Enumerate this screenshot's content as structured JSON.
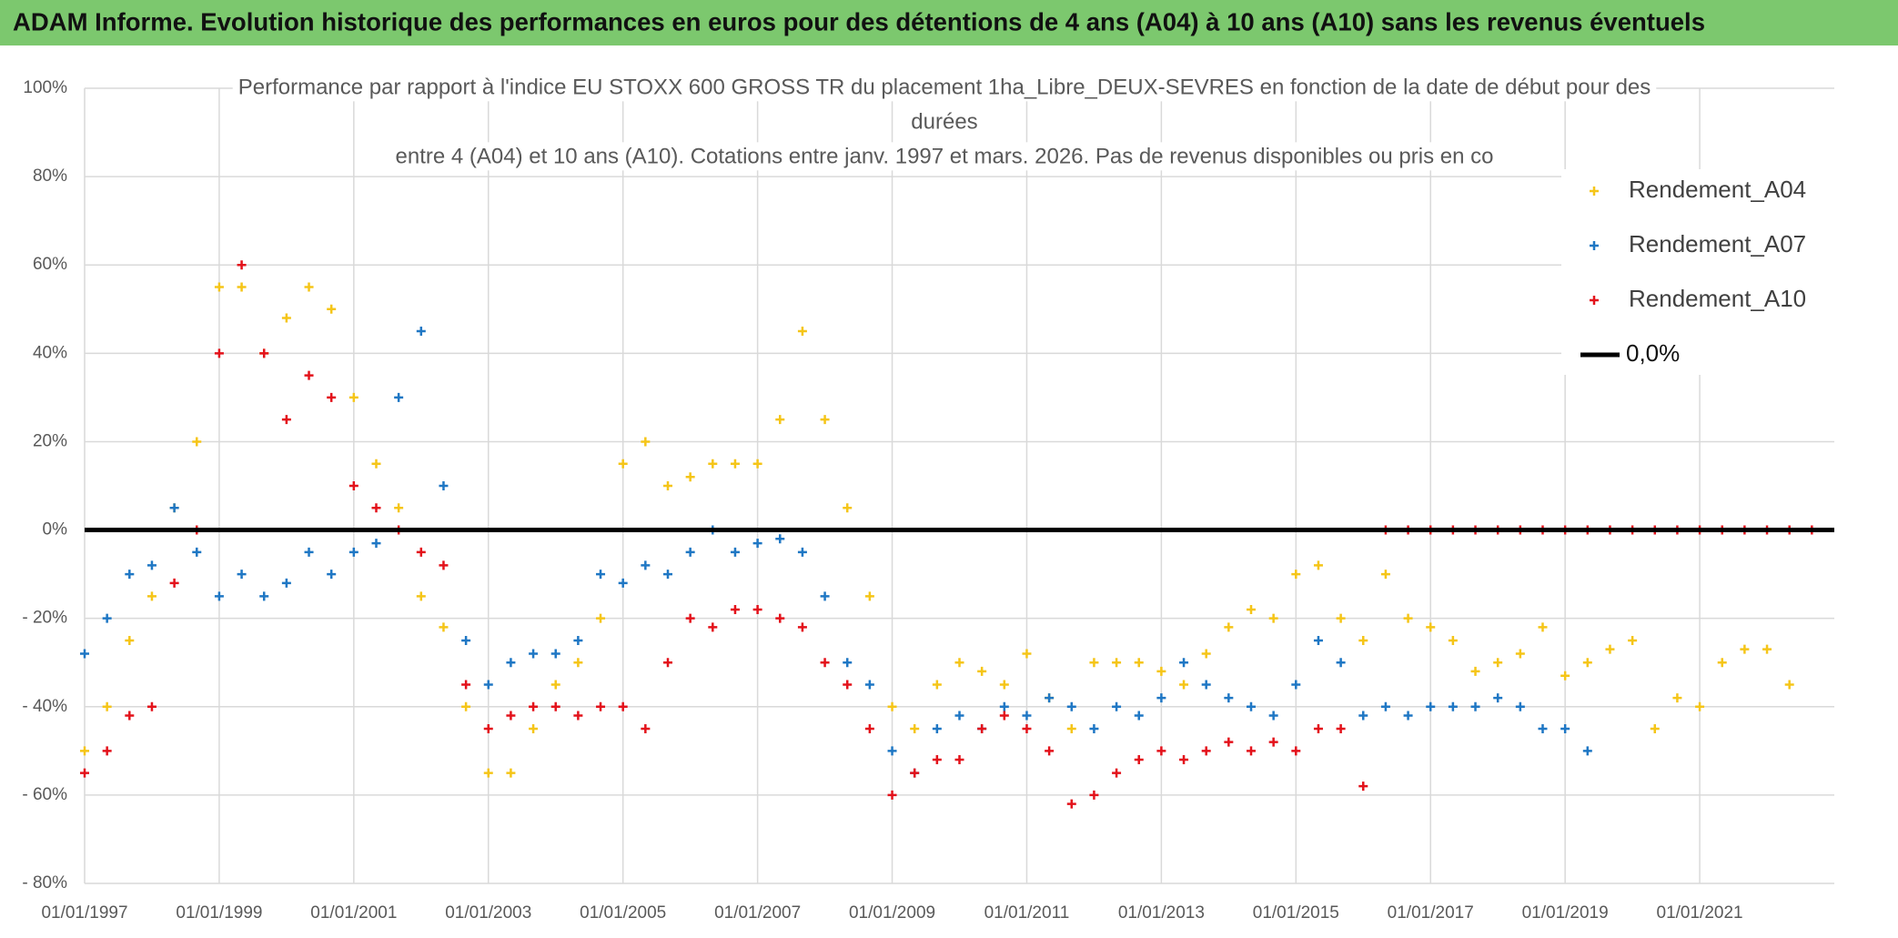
{
  "chart_data": {
    "type": "scatter",
    "header": "ADAM Informe. Evolution historique des performances en euros pour des détentions de 4 ans (A04) à 10 ans (A10) sans les revenus éventuels",
    "subtitle": [
      "Performance par rapport à l'indice EU STOXX 600 GROSS TR  du placement 1ha_Libre_DEUX-SEVRES en fonction de la date de début pour des",
      "durées",
      "entre 4 (A04) et 10 ans (A10). Cotations entre janv. 1997 et mars. 2026. Pas de revenus disponibles ou pris en co"
    ],
    "xlim": [
      "01/01/1997",
      "01/01/2023"
    ],
    "xticks": [
      "01/01/1997",
      "01/01/1999",
      "01/01/2001",
      "01/01/2003",
      "01/01/2005",
      "01/01/2007",
      "01/01/2009",
      "01/01/2011",
      "01/01/2013",
      "01/01/2015",
      "01/01/2017",
      "01/01/2019",
      "01/01/2021"
    ],
    "ylim": [
      -80,
      100
    ],
    "yticks": [
      {
        "value": 100,
        "label": "100%"
      },
      {
        "value": 80,
        "label": "80%"
      },
      {
        "value": 60,
        "label": "60%"
      },
      {
        "value": 40,
        "label": "40%"
      },
      {
        "value": 20,
        "label": "20%"
      },
      {
        "value": 0,
        "label": "0%"
      },
      {
        "value": -20,
        "label": "- 20%"
      },
      {
        "value": -40,
        "label": "- 40%"
      },
      {
        "value": -60,
        "label": "- 60%"
      },
      {
        "value": -80,
        "label": "- 80%"
      }
    ],
    "grid": true,
    "series": [
      {
        "name": "Rendement_A04",
        "color": "#f5c518",
        "mode": "markers",
        "x": [
          "01/01/1997",
          "01/05/1997",
          "01/09/1997",
          "01/01/1998",
          "01/05/1998",
          "01/09/1998",
          "01/01/1999",
          "01/05/1999",
          "01/09/1999",
          "01/01/2000",
          "01/05/2000",
          "01/09/2000",
          "01/01/2001",
          "01/05/2001",
          "01/09/2001",
          "01/01/2002",
          "01/05/2002",
          "01/09/2002",
          "01/01/2003",
          "01/05/2003",
          "01/09/2003",
          "01/01/2004",
          "01/05/2004",
          "01/09/2004",
          "01/01/2005",
          "01/05/2005",
          "01/09/2005",
          "01/01/2006",
          "01/05/2006",
          "01/09/2006",
          "01/01/2007",
          "01/05/2007",
          "01/09/2007",
          "01/01/2008",
          "01/05/2008",
          "01/09/2008",
          "01/01/2009",
          "01/05/2009",
          "01/09/2009",
          "01/01/2010",
          "01/05/2010",
          "01/09/2010",
          "01/01/2011",
          "01/05/2011",
          "01/09/2011",
          "01/01/2012",
          "01/05/2012",
          "01/09/2012",
          "01/01/2013",
          "01/05/2013",
          "01/09/2013",
          "01/01/2014",
          "01/05/2014",
          "01/09/2014",
          "01/01/2015",
          "01/05/2015",
          "01/09/2015",
          "01/01/2016",
          "01/05/2016",
          "01/09/2016",
          "01/01/2017",
          "01/05/2017",
          "01/09/2017",
          "01/01/2018",
          "01/05/2018",
          "01/09/2018",
          "01/01/2019",
          "01/05/2019",
          "01/09/2019",
          "01/01/2020",
          "01/05/2020",
          "01/09/2020",
          "01/01/2021",
          "01/05/2021",
          "01/09/2021",
          "01/01/2022",
          "01/05/2022"
        ],
        "values": [
          -50,
          -40,
          -25,
          -15,
          5,
          20,
          55,
          55,
          40,
          48,
          55,
          50,
          30,
          15,
          5,
          -15,
          -22,
          -40,
          -55,
          -55,
          -45,
          -35,
          -30,
          -20,
          15,
          20,
          10,
          12,
          15,
          15,
          15,
          25,
          45,
          25,
          5,
          -15,
          -40,
          -45,
          -35,
          -30,
          -32,
          -35,
          -28,
          -38,
          -45,
          -30,
          -30,
          -30,
          -32,
          -35,
          -28,
          -22,
          -18,
          -20,
          -10,
          -8,
          -20,
          -25,
          -10,
          -20,
          -22,
          -25,
          -32,
          -30,
          -28,
          -22,
          -33,
          -30,
          -27,
          -25,
          -45,
          -38,
          -40,
          -30,
          -27,
          -27,
          -35
        ]
      },
      {
        "name": "Rendement_A07",
        "color": "#1f77c4",
        "mode": "markers",
        "x": [
          "01/01/1997",
          "01/05/1997",
          "01/09/1997",
          "01/01/1998",
          "01/05/1998",
          "01/09/1998",
          "01/01/1999",
          "01/05/1999",
          "01/09/1999",
          "01/01/2000",
          "01/05/2000",
          "01/09/2000",
          "01/01/2001",
          "01/05/2001",
          "01/09/2001",
          "01/01/2002",
          "01/05/2002",
          "01/09/2002",
          "01/01/2003",
          "01/05/2003",
          "01/09/2003",
          "01/01/2004",
          "01/05/2004",
          "01/09/2004",
          "01/01/2005",
          "01/05/2005",
          "01/09/2005",
          "01/01/2006",
          "01/05/2006",
          "01/09/2006",
          "01/01/2007",
          "01/05/2007",
          "01/09/2007",
          "01/01/2008",
          "01/05/2008",
          "01/09/2008",
          "01/01/2009",
          "01/05/2009",
          "01/09/2009",
          "01/01/2010",
          "01/05/2010",
          "01/09/2010",
          "01/01/2011",
          "01/05/2011",
          "01/09/2011",
          "01/01/2012",
          "01/05/2012",
          "01/09/2012",
          "01/01/2013",
          "01/05/2013",
          "01/09/2013",
          "01/01/2014",
          "01/05/2014",
          "01/09/2014",
          "01/01/2015",
          "01/05/2015",
          "01/09/2015",
          "01/01/2016",
          "01/05/2016",
          "01/09/2016",
          "01/01/2017",
          "01/05/2017",
          "01/09/2017",
          "01/01/2018",
          "01/05/2018",
          "01/09/2018",
          "01/01/2019",
          "01/05/2019"
        ],
        "values": [
          -28,
          -20,
          -10,
          -8,
          5,
          -5,
          -15,
          -10,
          -15,
          -12,
          -5,
          -10,
          -5,
          -3,
          30,
          45,
          10,
          -25,
          -35,
          -30,
          -28,
          -28,
          -25,
          -10,
          -12,
          -8,
          -10,
          -5,
          0,
          -5,
          -3,
          -2,
          -5,
          -15,
          -30,
          -35,
          -50,
          -55,
          -45,
          -42,
          -45,
          -40,
          -42,
          -38,
          -40,
          -45,
          -40,
          -42,
          -38,
          -30,
          -35,
          -38,
          -40,
          -42,
          -35,
          -25,
          -30,
          -42,
          -40,
          -42,
          -40,
          -40,
          -40,
          -38,
          -40,
          -45,
          -45,
          -50
        ]
      },
      {
        "name": "Rendement_A10",
        "color": "#e3121b",
        "mode": "markers",
        "x": [
          "01/01/1997",
          "01/05/1997",
          "01/09/1997",
          "01/01/1998",
          "01/05/1998",
          "01/09/1998",
          "01/01/1999",
          "01/05/1999",
          "01/09/1999",
          "01/01/2000",
          "01/05/2000",
          "01/09/2000",
          "01/01/2001",
          "01/05/2001",
          "01/09/2001",
          "01/01/2002",
          "01/05/2002",
          "01/09/2002",
          "01/01/2003",
          "01/05/2003",
          "01/09/2003",
          "01/01/2004",
          "01/05/2004",
          "01/09/2004",
          "01/01/2005",
          "01/05/2005",
          "01/09/2005",
          "01/01/2006",
          "01/05/2006",
          "01/09/2006",
          "01/01/2007",
          "01/05/2007",
          "01/09/2007",
          "01/01/2008",
          "01/05/2008",
          "01/09/2008",
          "01/01/2009",
          "01/05/2009",
          "01/09/2009",
          "01/01/2010",
          "01/05/2010",
          "01/09/2010",
          "01/01/2011",
          "01/05/2011",
          "01/09/2011",
          "01/01/2012",
          "01/05/2012",
          "01/09/2012",
          "01/01/2013",
          "01/05/2013",
          "01/09/2013",
          "01/01/2014",
          "01/05/2014",
          "01/09/2014",
          "01/01/2015",
          "01/05/2015",
          "01/09/2015",
          "01/01/2016",
          "01/05/2016",
          "01/09/2016",
          "01/01/2017",
          "01/05/2017",
          "01/09/2017",
          "01/01/2018",
          "01/05/2018",
          "01/09/2018",
          "01/01/2019",
          "01/05/2019",
          "01/09/2019",
          "01/01/2020",
          "01/05/2020",
          "01/09/2020",
          "01/01/2021",
          "01/05/2021",
          "01/09/2021",
          "01/01/2022",
          "01/05/2022",
          "01/09/2022"
        ],
        "values": [
          -55,
          -50,
          -42,
          -40,
          -12,
          0,
          40,
          60,
          40,
          25,
          35,
          30,
          10,
          5,
          0,
          -5,
          -8,
          -35,
          -45,
          -42,
          -40,
          -40,
          -42,
          -40,
          -40,
          -45,
          -30,
          -20,
          -22,
          -18,
          -18,
          -20,
          -22,
          -30,
          -35,
          -45,
          -60,
          -55,
          -52,
          -52,
          -45,
          -42,
          -45,
          -50,
          -62,
          -60,
          -55,
          -52,
          -50,
          -52,
          -50,
          -48,
          -50,
          -48,
          -50,
          -45,
          -45,
          -58,
          0,
          0,
          0,
          0,
          0,
          0,
          0,
          0,
          0,
          0,
          0,
          0,
          0,
          0,
          0,
          0,
          0,
          0,
          0,
          0
        ]
      },
      {
        "name": "0,0%",
        "color": "#000000",
        "mode": "line",
        "x": [
          "01/01/1997",
          "01/01/2023"
        ],
        "values": [
          0,
          0
        ]
      }
    ]
  }
}
